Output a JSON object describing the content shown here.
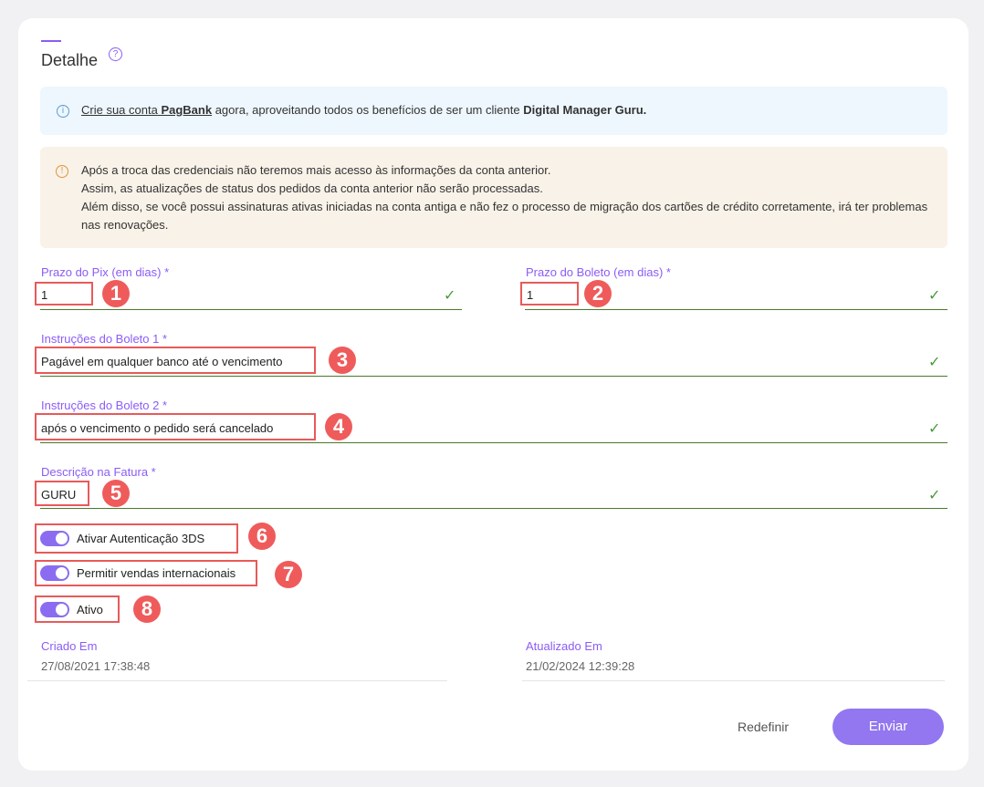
{
  "header": {
    "title": "Detalhe",
    "help_icon": "question-circle-icon"
  },
  "info": {
    "link": "Crie sua conta",
    "brand": "PagBank",
    "text": " agora, aproveitando todos os benefícios de ser um cliente ",
    "company": "Digital Manager Guru."
  },
  "warning": {
    "lines": [
      "Após a troca das credenciais não teremos mais acesso às informações da conta anterior.",
      "Assim, as atualizações de status dos pedidos da conta anterior não serão processadas.",
      "Além disso, se você possui assinaturas ativas iniciadas na conta antiga e não fez o processo de migração dos cartões de crédito corretamente, irá ter problemas nas renovações."
    ]
  },
  "fields": {
    "pix": {
      "label": "Prazo do Pix (em dias) *",
      "value": "1",
      "badge": "1"
    },
    "boleto": {
      "label": "Prazo do Boleto (em dias) *",
      "value": "1",
      "badge": "2"
    },
    "instr1": {
      "label": "Instruções do Boleto 1 *",
      "value": "Pagável em qualquer banco até o vencimento",
      "badge": "3"
    },
    "instr2": {
      "label": "Instruções do Boleto 2 *",
      "value": "após o vencimento o pedido será cancelado",
      "badge": "4"
    },
    "fatura": {
      "label": "Descrição na Fatura *",
      "value": "GURU",
      "badge": "5"
    }
  },
  "toggles": [
    {
      "label": "Ativar Autenticação 3DS",
      "on": true,
      "badge": "6"
    },
    {
      "label": "Permitir vendas internacionais",
      "on": true,
      "badge": "7"
    },
    {
      "label": "Ativo",
      "on": true,
      "badge": "8"
    }
  ],
  "meta": {
    "created_label": "Criado Em",
    "created": "27/08/2021 17:38:48",
    "updated_label": "Atualizado Em",
    "updated": "21/02/2024 12:39:28"
  },
  "actions": {
    "reset": "Redefinir",
    "submit": "Enviar"
  },
  "colors": {
    "accent": "#8b5cf6",
    "annotation": "#ef5b5b",
    "valid": "#4a9a3a"
  }
}
